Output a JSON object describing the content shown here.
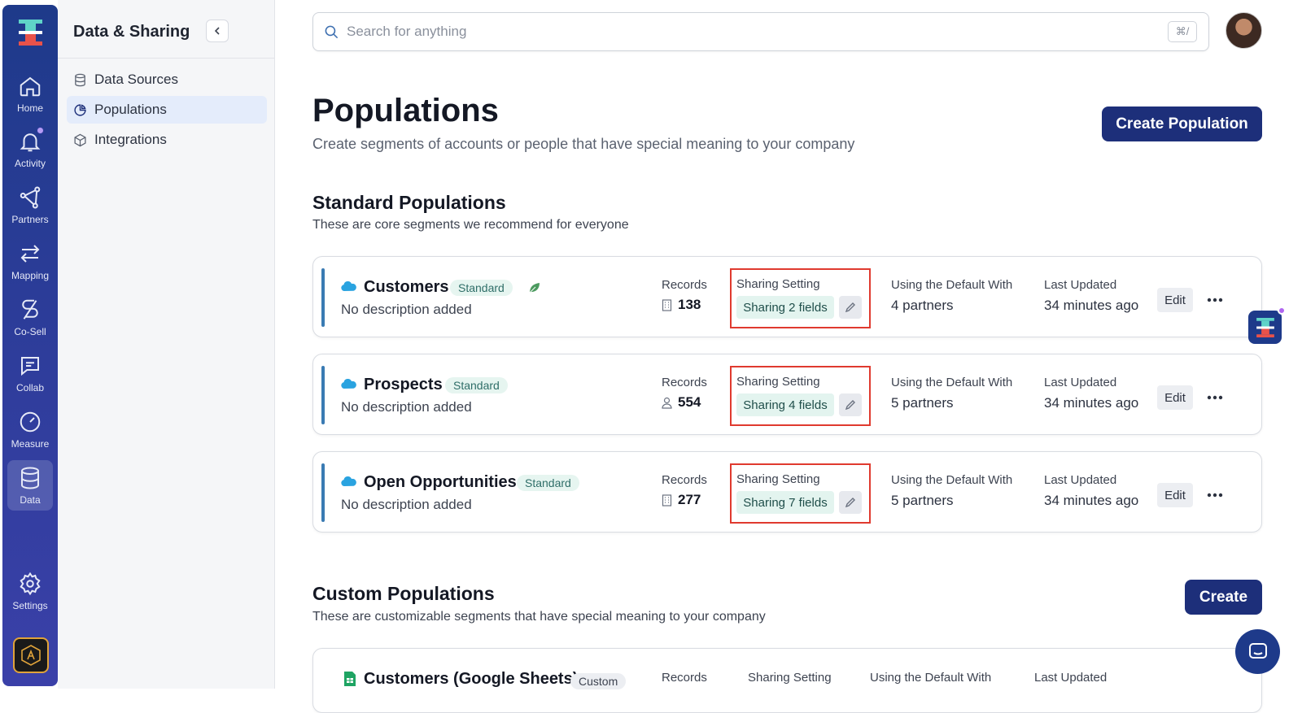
{
  "rail": {
    "items": [
      {
        "label": "Home",
        "icon": "home-icon"
      },
      {
        "label": "Activity",
        "icon": "bell-icon"
      },
      {
        "label": "Partners",
        "icon": "partners-icon"
      },
      {
        "label": "Mapping",
        "icon": "arrows-icon"
      },
      {
        "label": "Co-Sell",
        "icon": "cosell-icon"
      },
      {
        "label": "Collab",
        "icon": "chat-icon"
      },
      {
        "label": "Measure",
        "icon": "gauge-icon"
      },
      {
        "label": "Data",
        "icon": "database-icon"
      },
      {
        "label": "Settings",
        "icon": "gear-icon"
      }
    ],
    "active": "Data"
  },
  "sidebar": {
    "title": "Data & Sharing",
    "items": [
      {
        "label": "Data Sources",
        "icon": "database-icon"
      },
      {
        "label": "Populations",
        "icon": "pie-icon"
      },
      {
        "label": "Integrations",
        "icon": "cube-icon"
      }
    ]
  },
  "search": {
    "placeholder": "Search for anything",
    "shortcut": "⌘/"
  },
  "header": {
    "title": "Populations",
    "subtitle": "Create segments of accounts or people that have special meaning to your company",
    "create_label": "Create Population"
  },
  "standard": {
    "title": "Standard Populations",
    "subtitle": "These are core segments we recommend for everyone",
    "labels": {
      "records": "Records",
      "sharing": "Sharing Setting",
      "default_with": "Using the Default With",
      "last_updated": "Last Updated",
      "edit": "Edit"
    },
    "rows": [
      {
        "name": "Customers",
        "tag": "Standard",
        "description": "No description added",
        "records": "138",
        "sharing": "Sharing 2 fields",
        "partners": "4 partners",
        "updated": "34 minutes ago"
      },
      {
        "name": "Prospects",
        "tag": "Standard",
        "description": "No description added",
        "records": "554",
        "sharing": "Sharing 4 fields",
        "partners": "5 partners",
        "updated": "34 minutes ago"
      },
      {
        "name": "Open Opportunities",
        "tag": "Standard",
        "description": "No description added",
        "records": "277",
        "sharing": "Sharing 7 fields",
        "partners": "5 partners",
        "updated": "34 minutes ago"
      }
    ]
  },
  "custom": {
    "title": "Custom Populations",
    "subtitle": "These are customizable segments that have special meaning to your company",
    "create_label": "Create",
    "rows": [
      {
        "name": "Customers (Google Sheets)",
        "tag": "Custom"
      }
    ],
    "labels": {
      "records": "Records",
      "sharing": "Sharing Setting",
      "default_with": "Using the Default With",
      "last_updated": "Last Updated"
    }
  },
  "colors": {
    "rail": "#1e3a8a",
    "primary": "#1d2f7a",
    "highlight": "#e03a2f",
    "tag_bg": "#e6f5f0"
  }
}
